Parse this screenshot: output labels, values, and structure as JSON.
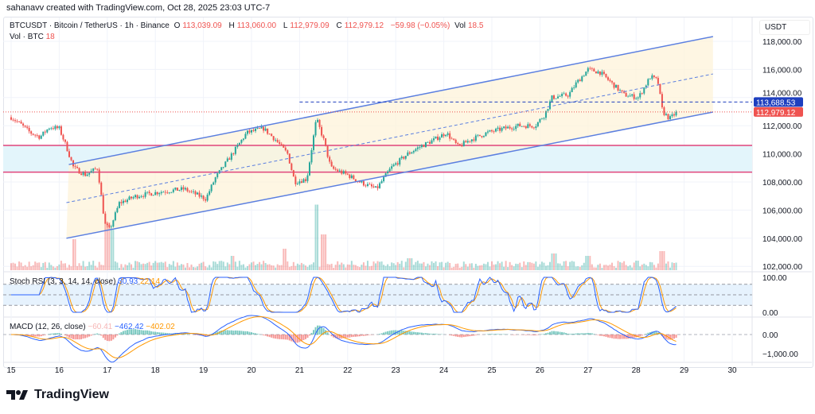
{
  "credit": "sahanavv created with TradingView.com, Oct 28, 2025 23:03 UTC-7",
  "legend": {
    "symbol": "BTCUSDT · Bitcoin / TetherUS · 1h · Binance",
    "o_label": "O",
    "o": "113,039.09",
    "h_label": "H",
    "h": "113,060.00",
    "l_label": "L",
    "l": "112,979.09",
    "c_label": "C",
    "c": "112,979.12",
    "change": "−59.98 (−0.05%)",
    "vol_label": "Vol",
    "vol": "18.5"
  },
  "volume_legend": {
    "label": "Vol · BTC",
    "value": "18"
  },
  "stoch_rsi": {
    "label": "Stoch RSI (3, 3, 14, 14, close)",
    "k": "30.93",
    "d": "22.14"
  },
  "macd": {
    "label": "MACD (12, 26, close)",
    "hist": "−60.41",
    "macd": "−462.42",
    "signal": "−402.02"
  },
  "currency": "USDT",
  "logo_text": "TradingView",
  "colors": {
    "up": "#26a69a",
    "down": "#ef5350",
    "channel": "#5b7fe0",
    "channel_fill": "#fdf3d9",
    "zone_line": "#e0457b",
    "zone_fill": "#e3f5fb",
    "k": "#2962ff",
    "d": "#ff9800",
    "last_price": "#ef5350",
    "level": "#1e3fbf"
  },
  "chart_data": {
    "type": "candlestick",
    "x_unit": "day of month (Oct 2025)",
    "xlim": [
      15,
      30.5
    ],
    "x_ticks": [
      "15",
      "16",
      "17",
      "18",
      "19",
      "20",
      "21",
      "22",
      "23",
      "24",
      "25",
      "26",
      "27",
      "28",
      "29",
      "30"
    ],
    "ylim": [
      101500,
      119000
    ],
    "y_ticks": [
      "118,000.00",
      "116,000.00",
      "114,000.00",
      "112,000.00",
      "110,000.00",
      "108,000.00",
      "106,000.00",
      "104,000.00",
      "102,000.00"
    ],
    "close_path": [
      [
        15.0,
        112600
      ],
      [
        15.2,
        112100
      ],
      [
        15.4,
        111500
      ],
      [
        15.6,
        111200
      ],
      [
        15.8,
        111900
      ],
      [
        16.0,
        111800
      ],
      [
        16.15,
        110500
      ],
      [
        16.3,
        109000
      ],
      [
        16.55,
        108500
      ],
      [
        16.8,
        109000
      ],
      [
        16.95,
        105000
      ],
      [
        17.05,
        104600
      ],
      [
        17.25,
        106500
      ],
      [
        17.6,
        107000
      ],
      [
        18.1,
        107300
      ],
      [
        18.6,
        107500
      ],
      [
        19.05,
        106800
      ],
      [
        19.25,
        108300
      ],
      [
        19.6,
        110000
      ],
      [
        19.9,
        111500
      ],
      [
        20.25,
        111800
      ],
      [
        20.5,
        111000
      ],
      [
        20.75,
        110000
      ],
      [
        20.9,
        108000
      ],
      [
        21.15,
        108200
      ],
      [
        21.35,
        112500
      ],
      [
        21.5,
        111000
      ],
      [
        21.65,
        109000
      ],
      [
        22.0,
        108500
      ],
      [
        22.25,
        108000
      ],
      [
        22.6,
        107500
      ],
      [
        22.9,
        109000
      ],
      [
        23.25,
        110000
      ],
      [
        23.5,
        110500
      ],
      [
        23.8,
        111000
      ],
      [
        24.05,
        111500
      ],
      [
        24.3,
        110500
      ],
      [
        24.55,
        111000
      ],
      [
        24.9,
        111500
      ],
      [
        25.25,
        111800
      ],
      [
        25.55,
        112000
      ],
      [
        25.9,
        112000
      ],
      [
        26.1,
        112800
      ],
      [
        26.25,
        114000
      ],
      [
        26.6,
        114200
      ],
      [
        26.75,
        115000
      ],
      [
        27.0,
        116000
      ],
      [
        27.25,
        115800
      ],
      [
        27.5,
        115000
      ],
      [
        27.75,
        114200
      ],
      [
        28.05,
        114000
      ],
      [
        28.3,
        115500
      ],
      [
        28.45,
        115200
      ],
      [
        28.55,
        113000
      ],
      [
        28.7,
        112500
      ],
      [
        28.85,
        112979.12
      ]
    ],
    "volume_spikes": [
      [
        16.3,
        26
      ],
      [
        17.0,
        40
      ],
      [
        17.1,
        34
      ],
      [
        19.6,
        12
      ],
      [
        20.7,
        18
      ],
      [
        21.35,
        55
      ],
      [
        21.5,
        30
      ],
      [
        23.3,
        10
      ],
      [
        26.3,
        14
      ],
      [
        27.0,
        12
      ],
      [
        28.55,
        16
      ]
    ],
    "channel": {
      "upper": [
        [
          16.2,
          109240
        ],
        [
          29.6,
          118340
        ]
      ],
      "middle": [
        [
          16.15,
          106530
        ],
        [
          29.6,
          115680
        ]
      ],
      "lower": [
        [
          16.15,
          104000
        ],
        [
          29.6,
          112970
        ]
      ]
    },
    "zone": {
      "top": 110600,
      "bottom": 108700
    },
    "level_line": {
      "value": 113688.53,
      "label": "113,688.53",
      "from": 21.0
    },
    "last_price": {
      "value": 112979.12,
      "label": "112,979.12"
    },
    "stoch_rsi": {
      "ylim": [
        0,
        100
      ],
      "bands": [
        80,
        50,
        20
      ],
      "ticks": [
        "100.00",
        "0.00"
      ]
    },
    "macd_pane": {
      "ticks": [
        "0.00",
        "−1,000.00"
      ]
    }
  }
}
